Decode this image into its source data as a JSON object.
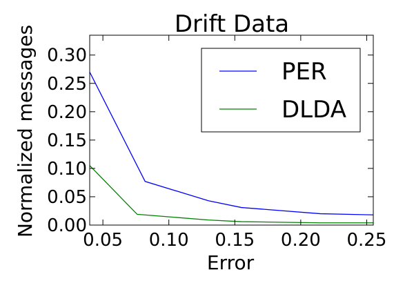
{
  "chart_data": {
    "type": "line",
    "title": "Drift Data",
    "xlabel": "Error",
    "ylabel": "Normalized messages",
    "xlim": [
      0.04,
      0.255
    ],
    "ylim": [
      0.0,
      0.335
    ],
    "xticks": [
      "0.05",
      "0.10",
      "0.15",
      "0.20",
      "0.25"
    ],
    "xtick_values": [
      0.05,
      0.1,
      0.15,
      0.2,
      0.25
    ],
    "yticks": [
      "0.00",
      "0.05",
      "0.10",
      "0.15",
      "0.20",
      "0.25",
      "0.30"
    ],
    "ytick_values": [
      0.0,
      0.05,
      0.1,
      0.15,
      0.2,
      0.25,
      0.3
    ],
    "grid": false,
    "legend_position": "top-right",
    "series": [
      {
        "name": "PER",
        "color": "#0000ff",
        "x": [
          0.04,
          0.082,
          0.13,
          0.155,
          0.215,
          0.255
        ],
        "y": [
          0.27,
          0.077,
          0.043,
          0.031,
          0.02,
          0.018
        ]
      },
      {
        "name": "DLDA",
        "color": "#008000",
        "x": [
          0.04,
          0.076,
          0.13,
          0.155,
          0.215,
          0.255
        ],
        "y": [
          0.105,
          0.019,
          0.009,
          0.006,
          0.004,
          0.004
        ]
      }
    ]
  }
}
